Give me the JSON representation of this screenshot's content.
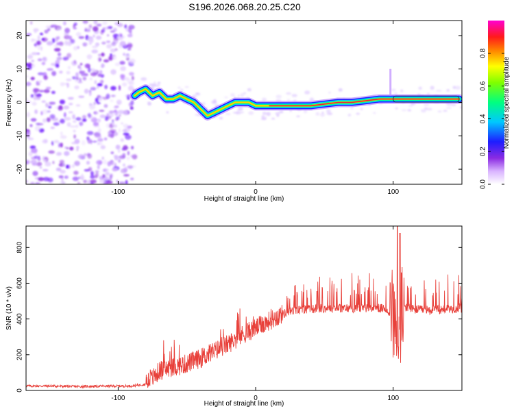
{
  "title": "S196.2026.068.20.25.C20",
  "colors": {
    "snr_line": "#e8403a",
    "axis": "#000000",
    "band_core": "#e8203a",
    "band_low": "#8a2be2"
  },
  "chart_data": [
    {
      "type": "heatmap",
      "title": "S196.2026.068.20.25.C20",
      "xlabel": "Height of straight line (km)",
      "ylabel": "Frequency (Hz)",
      "xlim": [
        -167,
        150
      ],
      "ylim": [
        -24.5,
        24.5
      ],
      "xticks": [
        -100,
        0,
        100
      ],
      "yticks": [
        -20,
        -10,
        0,
        10,
        20
      ],
      "ridge": {
        "x": [
          -88,
          -85,
          -80,
          -75,
          -70,
          -65,
          -60,
          -55,
          -50,
          -45,
          -40,
          -35,
          -30,
          -25,
          -20,
          -15,
          -10,
          -5,
          0,
          10,
          20,
          30,
          40,
          50,
          60,
          70,
          80,
          90,
          95,
          100,
          110,
          120,
          130,
          140,
          148
        ],
        "freq": [
          2,
          3,
          4,
          2,
          3,
          1,
          1,
          2,
          1,
          0,
          -2,
          -4,
          -3,
          -2,
          -1,
          0,
          0,
          0,
          -1,
          -1,
          -1,
          -1,
          -1,
          -0.5,
          0,
          0,
          0.5,
          1,
          1,
          1,
          1,
          1,
          1,
          1,
          1
        ]
      },
      "colorbar": {
        "label": "Normalized spectral amplitude",
        "range": [
          0,
          1
        ],
        "ticks": [
          "0.0",
          "0.2",
          "0.4",
          "0.6",
          "0.8"
        ]
      }
    },
    {
      "type": "line",
      "xlabel": "Height of straight line (km)",
      "ylabel": "SNR (10 * v/v)",
      "xlim": [
        -167,
        150
      ],
      "ylim": [
        0,
        920
      ],
      "xticks": [
        -100,
        0,
        100
      ],
      "yticks": [
        0,
        200,
        400,
        600,
        800
      ],
      "series": [
        {
          "name": "SNR",
          "x": [
            -167,
            -150,
            -130,
            -110,
            -90,
            -80,
            -76,
            -70,
            -60,
            -50,
            -40,
            -30,
            -20,
            -10,
            0,
            10,
            20,
            30,
            40,
            50,
            60,
            70,
            80,
            90,
            95,
            100,
            102,
            104,
            106,
            110,
            120,
            130,
            140,
            150
          ],
          "y": [
            25,
            25,
            22,
            24,
            25,
            35,
            60,
            110,
            130,
            150,
            180,
            220,
            260,
            310,
            350,
            390,
            430,
            450,
            455,
            460,
            460,
            460,
            460,
            460,
            455,
            420,
            300,
            150,
            480,
            460,
            450,
            450,
            455,
            460
          ],
          "peaks_x": [
            103,
            105
          ],
          "peaks_y": [
            920,
            880
          ]
        }
      ]
    }
  ]
}
